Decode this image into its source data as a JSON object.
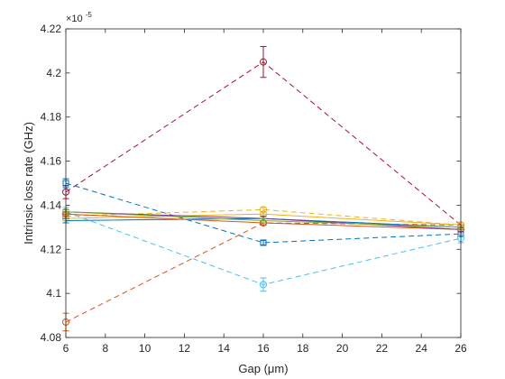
{
  "chart_data": {
    "type": "line",
    "xlabel": "Gap (μm)",
    "ylabel": "Intrinsic loss rate (GHz)",
    "y_exponent_label": "×10",
    "y_exponent_power": "-5",
    "xlim": [
      6,
      26
    ],
    "ylim": [
      4.08,
      4.22
    ],
    "x_ticks": [
      6,
      8,
      10,
      12,
      14,
      16,
      18,
      20,
      22,
      24,
      26
    ],
    "y_ticks": [
      4.08,
      4.1,
      4.12,
      4.14,
      4.16,
      4.18,
      4.2,
      4.22
    ],
    "x": [
      6,
      16,
      26
    ],
    "grid": false,
    "series": [
      {
        "values": [
          4.146,
          4.205,
          4.131
        ],
        "errors": [
          0.003,
          0.007,
          0.001
        ],
        "color": "#A2142F",
        "line": "dashed",
        "marker": "circle"
      },
      {
        "values": [
          4.15,
          4.123,
          4.127
        ],
        "errors": [
          0.002,
          0.001,
          0.001
        ],
        "color": "#0072BD",
        "line": "dashed",
        "marker": "square"
      },
      {
        "values": [
          4.137,
          4.104,
          4.125
        ],
        "errors": [
          0.002,
          0.003,
          0.002
        ],
        "color": "#4DBEEE",
        "line": "dashed",
        "marker": "circle"
      },
      {
        "values": [
          4.087,
          4.132,
          4.131
        ],
        "errors": [
          0.004,
          0.001,
          0.001
        ],
        "color": "#D95319",
        "line": "dashed",
        "marker": "circle"
      },
      {
        "values": [
          4.135,
          4.138,
          4.131
        ],
        "errors": [
          0.002,
          0.001,
          0.001
        ],
        "color": "#EDB120",
        "line": "dashed",
        "marker": "circle"
      },
      {
        "values": [
          4.134,
          4.136,
          4.131
        ],
        "errors": [
          0.001,
          0.001,
          0.001
        ],
        "color": "#EDB120",
        "line": "solid",
        "marker": "circle"
      },
      {
        "values": [
          4.133,
          4.134,
          4.13
        ],
        "errors": [
          0.001,
          0.001,
          0.001
        ],
        "color": "#0072BD",
        "line": "solid",
        "marker": "none"
      },
      {
        "values": [
          4.136,
          4.132,
          4.129
        ],
        "errors": [
          0.001,
          0.001,
          0.001
        ],
        "color": "#D95319",
        "line": "solid",
        "marker": "diamond"
      },
      {
        "values": [
          4.137,
          4.134,
          4.129
        ],
        "errors": [
          0.001,
          0.001,
          0.001
        ],
        "color": "#7E2F8E",
        "line": "solid",
        "marker": "none"
      },
      {
        "values": [
          4.137,
          4.133,
          4.13
        ],
        "errors": [
          0.001,
          0.001,
          0.001
        ],
        "color": "#77AC30",
        "line": "solid",
        "marker": "none"
      }
    ]
  }
}
